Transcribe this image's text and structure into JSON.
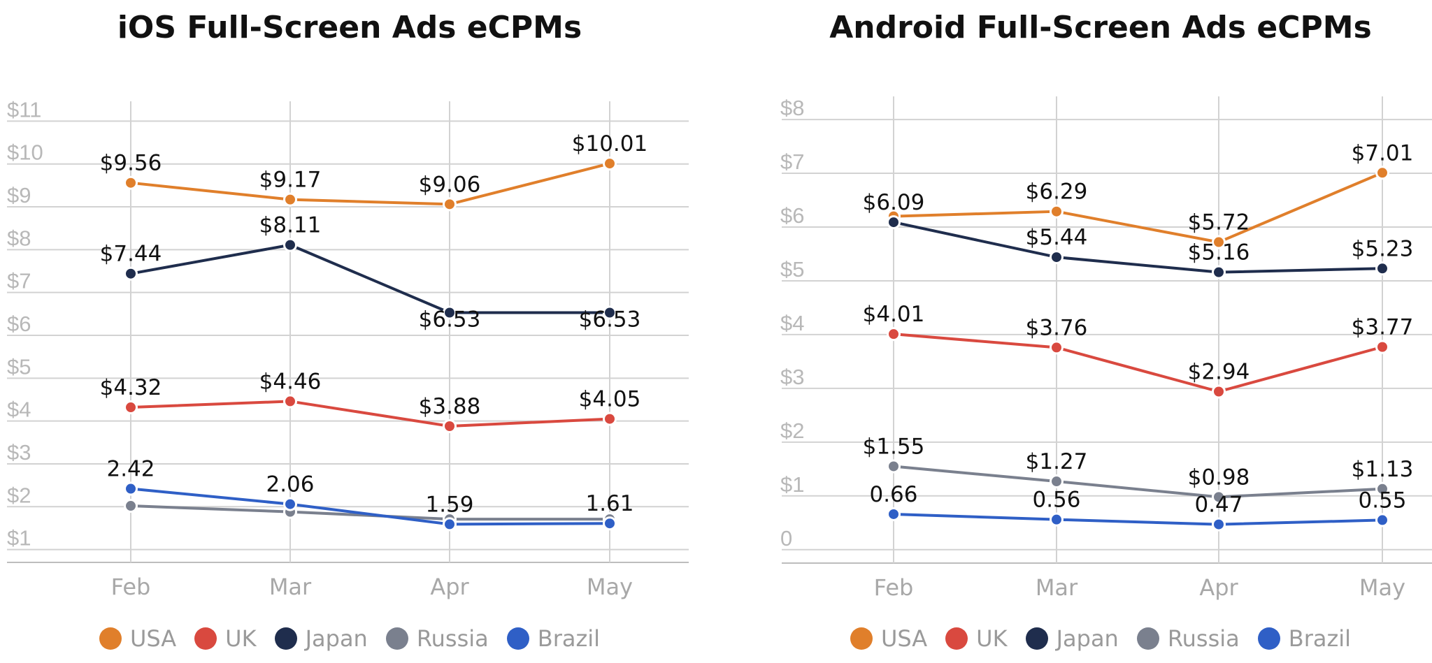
{
  "colors": {
    "USA": "#e07f2b",
    "UK": "#d9493f",
    "Japan": "#1f2d4d",
    "Russia": "#7a808e",
    "Brazil": "#2f5fc6",
    "grid": "#d2d2d2"
  },
  "chart_data": [
    {
      "type": "line",
      "title": "iOS Full-Screen Ads eCPMs",
      "categories": [
        "Feb",
        "Mar",
        "Apr",
        "May"
      ],
      "y_tick_labels": [
        "$1",
        "$2",
        "$3",
        "$4",
        "$5",
        "$6",
        "$7",
        "$8",
        "$9",
        "$10",
        "$11"
      ],
      "ylim": [
        0.7,
        11.3
      ],
      "grid": true,
      "legend_position": "bottom",
      "series": [
        {
          "name": "USA",
          "values": [
            9.56,
            9.17,
            9.06,
            10.01
          ],
          "labels": [
            "$9.56",
            "$9.17",
            "$9.06",
            "$10.01"
          ]
        },
        {
          "name": "UK",
          "values": [
            4.32,
            4.46,
            3.88,
            4.05
          ],
          "labels": [
            "$4.32",
            "$4.46",
            "$3.88",
            "$4.05"
          ]
        },
        {
          "name": "Japan",
          "values": [
            7.44,
            8.11,
            6.53,
            6.53
          ],
          "labels": [
            "$7.44",
            "$8.11",
            "$6.53",
            "$6.53"
          ]
        },
        {
          "name": "Russia",
          "values": [
            2.02,
            1.88,
            1.71,
            1.71
          ],
          "labels": [
            "",
            "",
            "",
            ""
          ]
        },
        {
          "name": "Brazil",
          "values": [
            2.42,
            2.06,
            1.59,
            1.61
          ],
          "labels": [
            "2.42",
            "2.06",
            "1.59",
            "1.61"
          ]
        }
      ]
    },
    {
      "type": "line",
      "title": "Android Full-Screen Ads eCPMs",
      "categories": [
        "Feb",
        "Mar",
        "Apr",
        "May"
      ],
      "y_tick_labels": [
        "0",
        "$1",
        "$2",
        "$3",
        "$4",
        "$5",
        "$6",
        "$7",
        "$8"
      ],
      "ylim": [
        -0.25,
        8.3
      ],
      "grid": true,
      "legend_position": "bottom",
      "series": [
        {
          "name": "USA",
          "values": [
            6.2,
            6.29,
            5.72,
            7.01
          ],
          "labels": [
            "",
            "$6.29",
            "$5.72",
            "$7.01"
          ]
        },
        {
          "name": "UK",
          "values": [
            4.01,
            3.76,
            2.94,
            3.77
          ],
          "labels": [
            "$4.01",
            "$3.76",
            "$2.94",
            "$3.77"
          ]
        },
        {
          "name": "Japan",
          "values": [
            6.09,
            5.44,
            5.16,
            5.23
          ],
          "labels": [
            "$6.09",
            "$5.44",
            "$5.16",
            "$5.23"
          ]
        },
        {
          "name": "Russia",
          "values": [
            1.55,
            1.27,
            0.98,
            1.13
          ],
          "labels": [
            "$1.55",
            "$1.27",
            "$0.98",
            "$1.13"
          ]
        },
        {
          "name": "Brazil",
          "values": [
            0.66,
            0.56,
            0.47,
            0.55
          ],
          "labels": [
            "0.66",
            "0.56",
            "0.47",
            "0.55"
          ]
        }
      ]
    }
  ],
  "legend": [
    "USA",
    "UK",
    "Japan",
    "Russia",
    "Brazil"
  ]
}
